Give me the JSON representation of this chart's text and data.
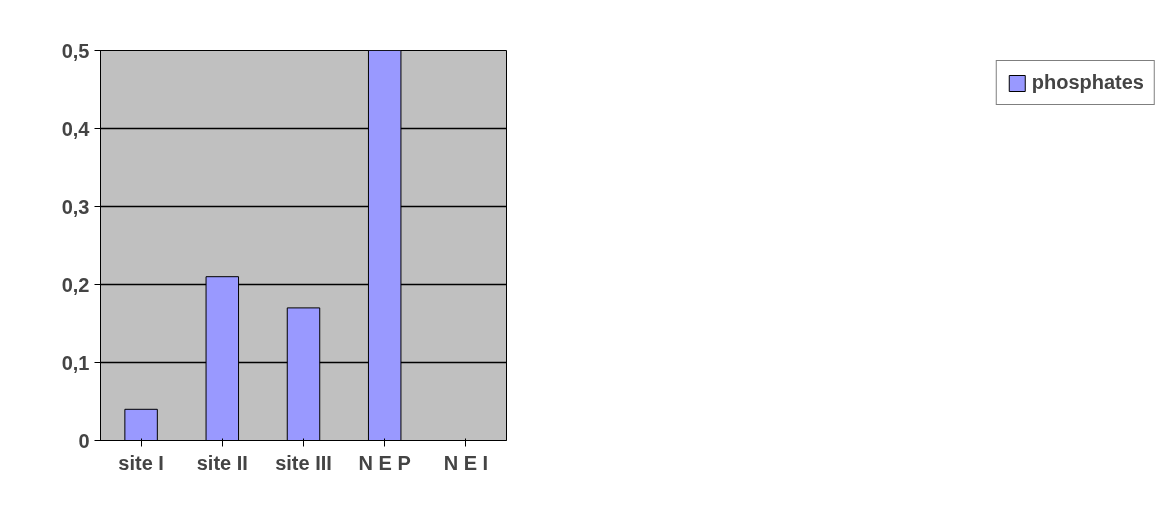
{
  "chart_data": {
    "type": "bar",
    "categories": [
      "site I",
      "site II",
      "site III",
      "N E P",
      "N E I"
    ],
    "series": [
      {
        "name": "phosphates",
        "color": "#9999ff",
        "values": [
          0.04,
          0.21,
          0.17,
          0.5,
          null
        ]
      }
    ],
    "ylim": [
      0,
      0.5
    ],
    "yticks": [
      0,
      {
        "value": 0.1,
        "label": "0,1"
      },
      {
        "value": 0.2,
        "label": "0,2"
      },
      {
        "value": 0.3,
        "label": "0,3"
      },
      {
        "value": 0.4,
        "label": "0,4"
      },
      {
        "value": 0.5,
        "label": "0,5"
      }
    ],
    "grid": "y",
    "legend": "right"
  }
}
